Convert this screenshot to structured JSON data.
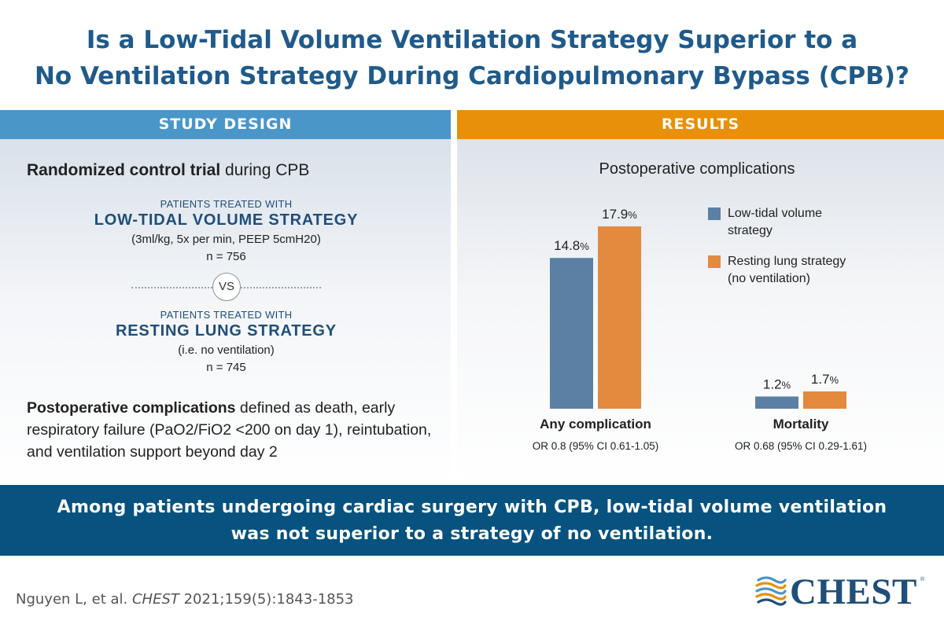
{
  "title": {
    "line1": "Is a Low-Tidal Volume Ventilation Strategy Superior to a",
    "line2": "No Ventilation Strategy During Cardiopulmonary Bypass (CPB)?"
  },
  "study_design": {
    "header": "STUDY DESIGN",
    "rct_bold": "Randomized control trial",
    "rct_rest": " during CPB",
    "arm1": {
      "caption": "PATIENTS TREATED WITH",
      "name": "LOW-TIDAL VOLUME STRATEGY",
      "detail": "(3ml/kg, 5x per min, PEEP 5cmH20)",
      "n": "n = 756"
    },
    "vs": "VS",
    "arm2": {
      "caption": "PATIENTS TREATED WITH",
      "name": "RESTING LUNG STRATEGY",
      "detail": "(i.e. no ventilation)",
      "n": "n = 745"
    },
    "definition_bold": "Postoperative complications",
    "definition_rest": " defined as death, early respiratory failure (PaO2/FiO2 <200 on day 1), reintubation, and ventilation support beyond day 2"
  },
  "results": {
    "header": "RESULTS"
  },
  "chart_data": {
    "type": "bar",
    "title": "Postoperative complications",
    "categories": [
      "Any complication",
      "Mortality"
    ],
    "odds_ratios": [
      "OR 0.8 (95% CI 0.61-1.05)",
      "OR 0.68 (95% CI 0.29-1.61)"
    ],
    "series": [
      {
        "name": "Low-tidal volume strategy",
        "legend_lines": [
          "Low-tidal volume",
          "strategy"
        ],
        "values": [
          14.8,
          1.2
        ],
        "labels": [
          "14.8",
          "1.2"
        ],
        "color": "#5b80a4"
      },
      {
        "name": "Resting lung strategy (no ventilation)",
        "legend_lines": [
          "Resting lung strategy",
          "(no ventilation)"
        ],
        "values": [
          17.9,
          1.7
        ],
        "labels": [
          "17.9",
          "1.7"
        ],
        "color": "#e38a3f"
      }
    ],
    "unit": "%",
    "ylim": [
      0,
      18
    ]
  },
  "conclusion": {
    "line1": "Among patients undergoing cardiac surgery with CPB, low-tidal volume ventilation",
    "line2": "was not superior to a strategy of no ventilation."
  },
  "citation": {
    "authors": "Nguyen L, et al. ",
    "journal": "CHEST",
    "ref": " 2021;159(5):1843-1853"
  },
  "logo": {
    "text": "CHEST",
    "reg": "®"
  },
  "colors": {
    "title": "#1f5a8a",
    "study_header": "#4a96c8",
    "results_header": "#e8900a",
    "banner": "#07527e"
  }
}
